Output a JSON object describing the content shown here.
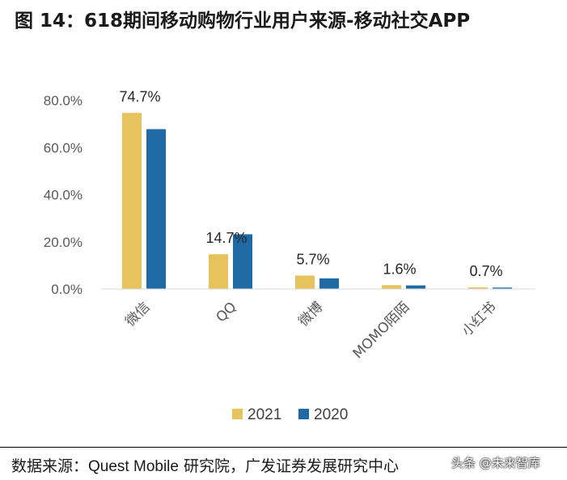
{
  "header": {
    "title": "图 14：618期间移动购物行业用户来源-移动社交APP"
  },
  "chart_data": {
    "type": "bar",
    "title": "图 14：618期间移动购物行业用户来源-移动社交APP",
    "categories": [
      "微信",
      "QQ",
      "微博",
      "MOMO陌陌",
      "小红书"
    ],
    "series": [
      {
        "name": "2021",
        "values": [
          74.7,
          14.7,
          5.7,
          1.6,
          0.7
        ],
        "color": "#E6C35C"
      },
      {
        "name": "2020",
        "values": [
          67.8,
          23.2,
          4.5,
          1.5,
          0.6
        ],
        "color": "#1F6AA5"
      }
    ],
    "data_labels": [
      "74.7%",
      "14.7%",
      "5.7%",
      "1.6%",
      "0.7%"
    ],
    "y_ticks": [
      "0.0%",
      "20.0%",
      "40.0%",
      "60.0%",
      "80.0%"
    ],
    "ylim": [
      0,
      80
    ],
    "xlabel": "",
    "ylabel": "",
    "legend": "bottom",
    "grid": false
  },
  "footer": {
    "source_prefix": "数据来源：",
    "source_latin": "Quest Mobile",
    "source_suffix": " 研究院，广发证券发展研究中心",
    "watermark": "头条 @未来智库"
  }
}
